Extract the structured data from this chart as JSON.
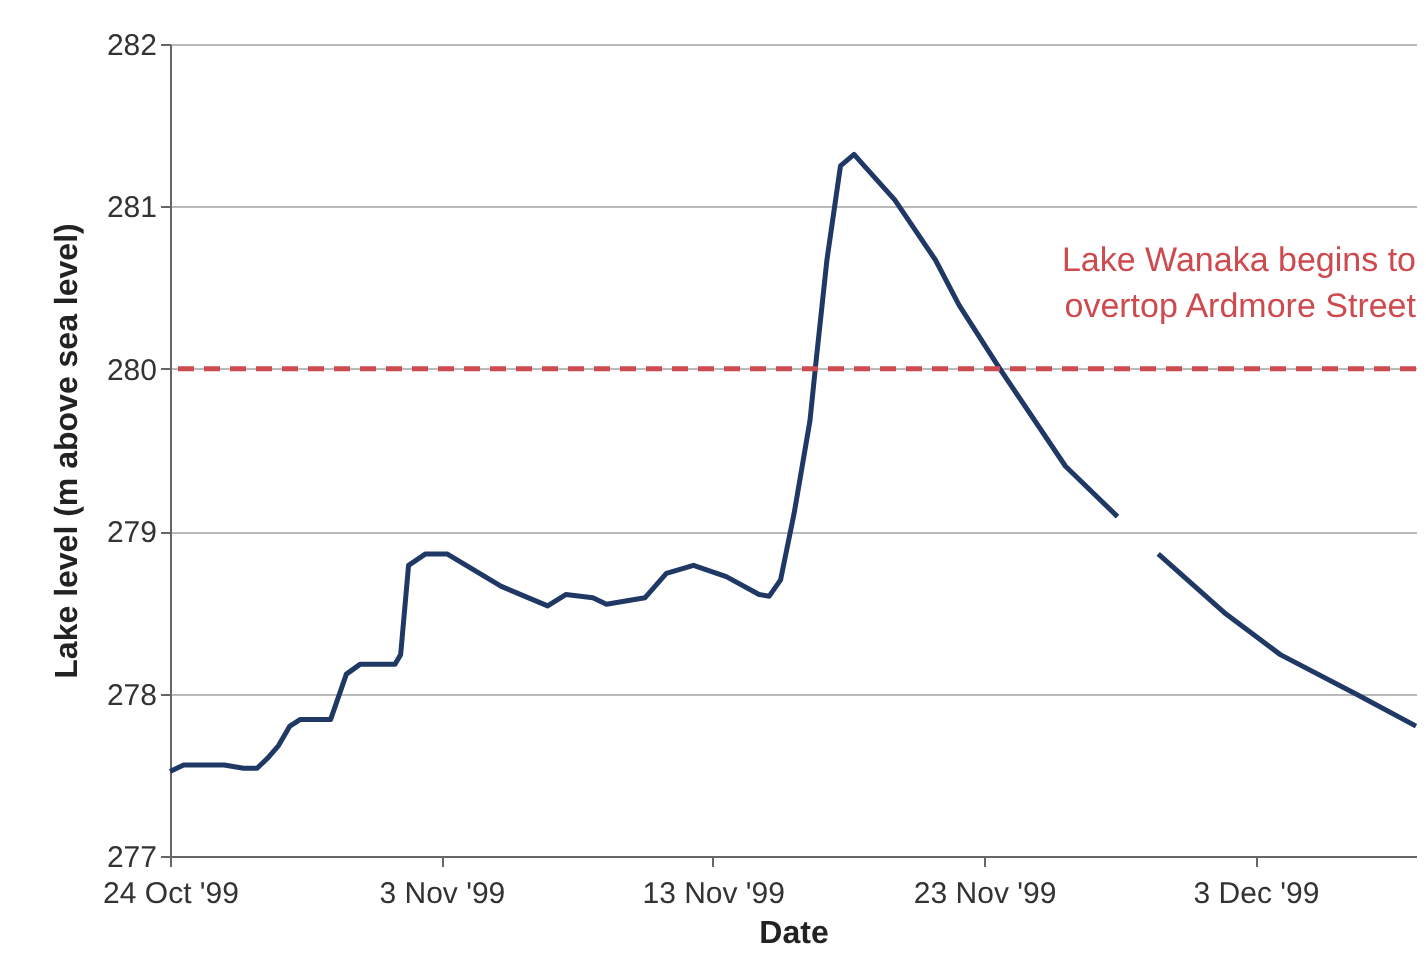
{
  "chart_data": {
    "type": "line",
    "xlabel": "Date",
    "ylabel": "Lake level (m above sea level)",
    "x": [
      "1999-10-24T00:00",
      "1999-10-24T12:00",
      "1999-10-26T00:00",
      "1999-10-26T17:00",
      "1999-10-27T05:00",
      "1999-10-27T14:00",
      "1999-10-28T00:00",
      "1999-10-28T10:00",
      "1999-10-28T19:00",
      "1999-10-29T22:00",
      "1999-10-30T12:00",
      "1999-10-31T00:00",
      "1999-11-01T07:00",
      "1999-11-01T12:00",
      "1999-11-01T19:00",
      "1999-11-02T10:00",
      "1999-11-03T05:00",
      "1999-11-05T05:00",
      "1999-11-06T22:00",
      "1999-11-07T14:00",
      "1999-11-08T14:00",
      "1999-11-09T02:00",
      "1999-11-10T12:00",
      "1999-11-11T07:00",
      "1999-11-12T07:00",
      "1999-11-13T12:00",
      "1999-11-14T17:00",
      "1999-11-15T02:00",
      "1999-11-15T12:00",
      "1999-11-16T00:00",
      "1999-11-16T14:00",
      "1999-11-16T19:00",
      "1999-11-17T05:00",
      "1999-11-17T17:00",
      "1999-11-18T05:00",
      "1999-11-18T14:00",
      "1999-11-19T17:00",
      "1999-11-21T05:00",
      "1999-11-22T02:00",
      "1999-11-23T14:00",
      "1999-11-26T00:00",
      "1999-11-27T22:00",
      "1999-11-28T12:00",
      "1999-11-29T10:00",
      "1999-12-01T22:00",
      "1999-12-03T22:00",
      "1999-12-06T19:00",
      "1999-12-08T22:00"
    ],
    "series": [
      {
        "color": "#1f3864",
        "values": [
          277.52,
          277.56,
          277.56,
          277.54,
          277.54,
          277.6,
          277.68,
          277.8,
          277.84,
          277.84,
          278.12,
          278.18,
          278.18,
          278.24,
          278.79,
          278.86,
          278.86,
          278.66,
          278.54,
          278.61,
          278.59,
          278.55,
          278.59,
          278.74,
          278.79,
          278.72,
          278.61,
          278.6,
          278.7,
          279.11,
          279.68,
          280.02,
          280.67,
          281.25,
          281.32,
          281.25,
          281.04,
          280.67,
          280.39,
          280.0,
          279.4,
          279.09,
          null,
          278.86,
          278.49,
          278.24,
          277.99,
          277.8
        ]
      }
    ],
    "xlim": [
      "1999-10-24T00:00",
      "1999-12-08T22:00"
    ],
    "xticks": [
      {
        "value": "1999-10-24T00:00",
        "label": "24 Oct '99"
      },
      {
        "value": "1999-11-03T00:00",
        "label": "3 Nov '99"
      },
      {
        "value": "1999-11-13T00:00",
        "label": "13 Nov '99"
      },
      {
        "value": "1999-11-23T00:00",
        "label": "23 Nov '99"
      },
      {
        "value": "1999-12-03T00:00",
        "label": "3 Dec '99"
      }
    ],
    "ylim": [
      277,
      282
    ],
    "yticks": [
      277,
      278,
      279,
      280,
      281,
      282
    ],
    "ref_lines": [
      {
        "axis": "y",
        "value": 280,
        "label": "Lake Wanaka begins to\novertop Ardmore Street",
        "color": "#cd4a4f",
        "line_style": "dashed"
      }
    ],
    "grid": "y",
    "marker": "none",
    "line_style": "solid"
  }
}
